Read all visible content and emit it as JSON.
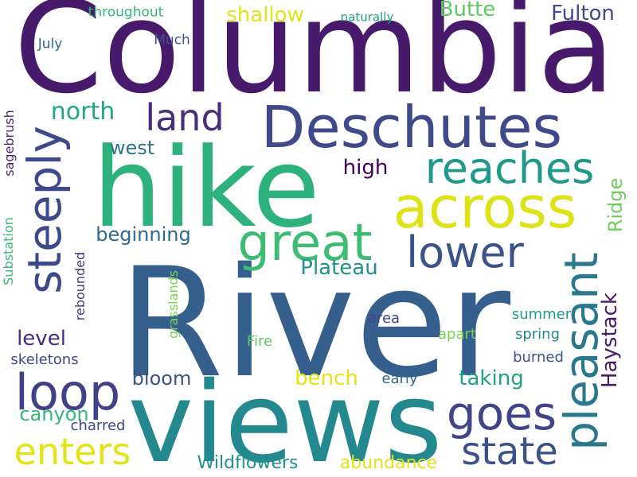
{
  "colors": {
    "purple": "#481a6c",
    "indigo": "#472f7d",
    "blue": "#3e4a89",
    "steel": "#31688e",
    "teal": "#26828e",
    "green": "#1f9e89",
    "mint": "#35b779",
    "lime": "#6ece58",
    "light_green": "#62cb5f",
    "yellow": "#dde318",
    "yellow_bright": "#e2e418",
    "dark": "#440154"
  },
  "words": [
    {
      "text": "Columbia",
      "color": "#481a6c"
    },
    {
      "text": "River",
      "color": "#355f8d"
    },
    {
      "text": "views",
      "color": "#23898e"
    },
    {
      "text": "hike",
      "color": "#2db27d"
    },
    {
      "text": "Deschutes",
      "color": "#3e4a89"
    },
    {
      "text": "across",
      "color": "#dde318"
    },
    {
      "text": "great",
      "color": "#3fbc73"
    },
    {
      "text": "reaches",
      "color": "#1f9a8a"
    },
    {
      "text": "lower",
      "color": "#3b528b"
    },
    {
      "text": "steeply",
      "color": "#3e4989"
    },
    {
      "text": "pleasant",
      "color": "#2a788e"
    },
    {
      "text": "loop",
      "color": "#424086"
    },
    {
      "text": "goes",
      "color": "#414487"
    },
    {
      "text": "state",
      "color": "#3b528b"
    },
    {
      "text": "enters",
      "color": "#e2e418"
    },
    {
      "text": "land",
      "color": "#472f7d"
    },
    {
      "text": "north",
      "color": "#21a685"
    },
    {
      "text": "Fulton",
      "color": "#3e4a89"
    },
    {
      "text": "Butte",
      "color": "#5ec962"
    },
    {
      "text": "shallow",
      "color": "#e2e418"
    },
    {
      "text": "throughout",
      "color": "#35b779"
    },
    {
      "text": "naturally",
      "color": "#1f9e89"
    },
    {
      "text": "Much",
      "color": "#3b528b"
    },
    {
      "text": "July",
      "color": "#31688e"
    },
    {
      "text": "west",
      "color": "#2c728e"
    },
    {
      "text": "high",
      "color": "#440154"
    },
    {
      "text": "Ridge",
      "color": "#6ece58"
    },
    {
      "text": "beginning",
      "color": "#31688e"
    },
    {
      "text": "Plateau",
      "color": "#21918c"
    },
    {
      "text": "Haystack",
      "color": "#481a6c"
    },
    {
      "text": "summer",
      "color": "#1f9e89"
    },
    {
      "text": "spring",
      "color": "#25858e"
    },
    {
      "text": "burned",
      "color": "#3b528b"
    },
    {
      "text": "apart",
      "color": "#7ad151"
    },
    {
      "text": "area",
      "color": "#404588"
    },
    {
      "text": "level",
      "color": "#472d7b"
    },
    {
      "text": "bloom",
      "color": "#3b528b"
    },
    {
      "text": "bench",
      "color": "#e2e418"
    },
    {
      "text": "taking",
      "color": "#1fa188"
    },
    {
      "text": "early",
      "color": "#31688e"
    },
    {
      "text": "canyon",
      "color": "#35b779"
    },
    {
      "text": "charred",
      "color": "#3e4a89"
    },
    {
      "text": "Wildflowers",
      "color": "#21918c"
    },
    {
      "text": "abundance",
      "color": "#e2e418"
    },
    {
      "text": "skeletons",
      "color": "#3e4a89"
    },
    {
      "text": "Fire",
      "color": "#5ec962"
    },
    {
      "text": "grasslands",
      "color": "#7ad151"
    },
    {
      "text": "rebounded",
      "color": "#46327e"
    },
    {
      "text": "Substation",
      "color": "#35b779"
    },
    {
      "text": "sagebrush",
      "color": "#482576"
    }
  ]
}
